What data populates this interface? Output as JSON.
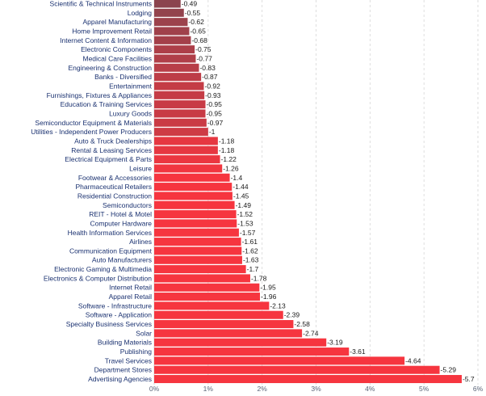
{
  "chart_data": {
    "type": "bar",
    "orientation": "horizontal",
    "title": "",
    "xlabel": "",
    "ylabel": "",
    "xlim": [
      0,
      6
    ],
    "grid": true,
    "xticks": [
      0,
      1,
      2,
      3,
      4,
      5,
      6
    ],
    "xtick_labels": [
      "0%",
      "1%",
      "2%",
      "3%",
      "4%",
      "5%",
      "6%"
    ],
    "categories": [
      "Scientific & Technical Instruments",
      "Lodging",
      "Apparel Manufacturing",
      "Home Improvement Retail",
      "Internet Content & Information",
      "Electronic Components",
      "Medical Care Facilities",
      "Engineering & Construction",
      "Banks - Diversified",
      "Entertainment",
      "Furnishings, Fixtures & Appliances",
      "Education & Training Services",
      "Luxury Goods",
      "Semiconductor Equipment & Materials",
      "Utilities - Independent Power Producers",
      "Auto & Truck Dealerships",
      "Rental & Leasing Services",
      "Electrical Equipment & Parts",
      "Leisure",
      "Footwear & Accessories",
      "Pharmaceutical Retailers",
      "Residential Construction",
      "Semiconductors",
      "REIT - Hotel & Motel",
      "Computer Hardware",
      "Health Information Services",
      "Airlines",
      "Communication Equipment",
      "Auto Manufacturers",
      "Electronic Gaming & Multimedia",
      "Electronics & Computer Distribution",
      "Internet Retail",
      "Apparel Retail",
      "Software - Infrastructure",
      "Software - Application",
      "Specialty Business Services",
      "Solar",
      "Building Materials",
      "Publishing",
      "Travel Services",
      "Department Stores",
      "Advertising Agencies"
    ],
    "values": [
      -0.49,
      -0.55,
      -0.62,
      -0.65,
      -0.68,
      -0.75,
      -0.77,
      -0.83,
      -0.87,
      -0.92,
      -0.93,
      -0.95,
      -0.95,
      -0.97,
      -1,
      -1.18,
      -1.18,
      -1.22,
      -1.26,
      -1.4,
      -1.44,
      -1.45,
      -1.49,
      -1.52,
      -1.53,
      -1.57,
      -1.61,
      -1.62,
      -1.63,
      -1.7,
      -1.78,
      -1.95,
      -1.96,
      -2.13,
      -2.39,
      -2.58,
      -2.74,
      -3.19,
      -3.61,
      -4.64,
      -5.29,
      -5.7
    ],
    "value_labels": [
      "-0.49",
      "-0.55",
      "-0.62",
      "-0.65",
      "-0.68",
      "-0.75",
      "-0.77",
      "-0.83",
      "-0.87",
      "-0.92",
      "-0.93",
      "-0.95",
      "-0.95",
      "-0.97",
      "-1",
      "-1.18",
      "-1.18",
      "-1.22",
      "-1.26",
      "-1.4",
      "-1.44",
      "-1.45",
      "-1.49",
      "-1.52",
      "-1.53",
      "-1.57",
      "-1.61",
      "-1.62",
      "-1.63",
      "-1.7",
      "-1.78",
      "-1.95",
      "-1.96",
      "-2.13",
      "-2.39",
      "-2.58",
      "-2.74",
      "-3.19",
      "-3.61",
      "-4.64",
      "-5.29",
      "-5.7"
    ],
    "colors": {
      "low": "#8b444e",
      "high": "#f6353f"
    }
  }
}
